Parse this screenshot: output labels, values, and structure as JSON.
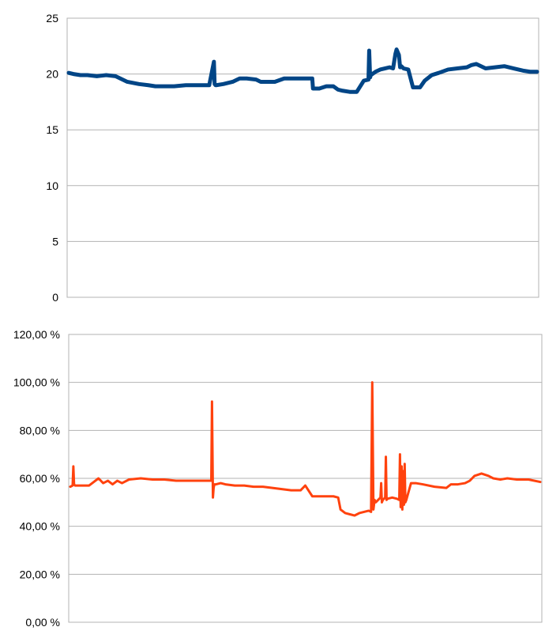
{
  "chart_data": [
    {
      "type": "line",
      "title": "",
      "xlabel": "",
      "ylabel": "",
      "ylim": [
        0,
        25
      ],
      "yticks": [
        0,
        5,
        10,
        15,
        20,
        25
      ],
      "ytick_labels": [
        "0",
        "5",
        "10",
        "15",
        "20",
        "25"
      ],
      "grid": true,
      "legend": "none",
      "series": [
        {
          "color": "#004586",
          "x": [
            0,
            2,
            5,
            8,
            12,
            16,
            20,
            25,
            30,
            34,
            37,
            40,
            45,
            50,
            55,
            60,
            62,
            62.3,
            62.7,
            63,
            66,
            70,
            72,
            73,
            76,
            80,
            82,
            85,
            88,
            92,
            95,
            98,
            100,
            103,
            104,
            104.3,
            107,
            110,
            113,
            115,
            117,
            120,
            123,
            126,
            128,
            128.3,
            128.7,
            129,
            131,
            133,
            135,
            137,
            138.5,
            139.5,
            140,
            141,
            141.5,
            142,
            143,
            145,
            147,
            149,
            150,
            152,
            155,
            158,
            162,
            166,
            170,
            172,
            174,
            178,
            182,
            186,
            190,
            194,
            197,
            200
          ],
          "y": [
            20.1,
            20.0,
            19.9,
            19.9,
            19.8,
            19.9,
            19.8,
            19.3,
            19.1,
            19.0,
            18.9,
            18.9,
            18.9,
            19.0,
            19.0,
            19.0,
            21.1,
            19.1,
            19.0,
            19.0,
            19.1,
            19.3,
            19.5,
            19.6,
            19.6,
            19.5,
            19.3,
            19.3,
            19.3,
            19.6,
            19.6,
            19.6,
            19.6,
            19.6,
            19.6,
            18.7,
            18.7,
            18.9,
            18.9,
            18.6,
            18.5,
            18.4,
            18.4,
            19.4,
            19.5,
            22.1,
            19.7,
            19.9,
            20.2,
            20.4,
            20.5,
            20.6,
            20.5,
            21.8,
            22.2,
            21.7,
            20.6,
            20.7,
            20.5,
            20.4,
            18.8,
            18.8,
            18.8,
            19.4,
            19.9,
            20.1,
            20.4,
            20.5,
            20.6,
            20.8,
            20.9,
            20.5,
            20.6,
            20.7,
            20.5,
            20.3,
            20.2,
            20.2
          ]
        }
      ]
    },
    {
      "type": "line",
      "title": "",
      "xlabel": "",
      "ylabel": "",
      "ylim": [
        0,
        120
      ],
      "yticks": [
        0,
        20,
        40,
        60,
        80,
        100,
        120
      ],
      "ytick_labels": [
        "0,00 %",
        "20,00 %",
        "40,00 %",
        "60,00 %",
        "80,00 %",
        "100,00 %",
        "120,00 %"
      ],
      "grid": true,
      "legend": "none",
      "series": [
        {
          "color": "#ff420e",
          "x": [
            0,
            1,
            1.3,
            1.6,
            2,
            5,
            8,
            10,
            12,
            14,
            16,
            18,
            20,
            22,
            25,
            30,
            35,
            40,
            45,
            50,
            55,
            58,
            60,
            60.3,
            60.7,
            61,
            61.3,
            62,
            64,
            66,
            70,
            74,
            78,
            82,
            86,
            90,
            94,
            98,
            100,
            103,
            104,
            104.3,
            108,
            112,
            114,
            115,
            117,
            119,
            121,
            123,
            125,
            127,
            128,
            128.5,
            129,
            129.5,
            130,
            131,
            132,
            132.3,
            132.6,
            133,
            134,
            134.3,
            134.6,
            135,
            137,
            139,
            140,
            140.3,
            140.6,
            141,
            141.3,
            141.6,
            142,
            142.3,
            142.6,
            143,
            145,
            147,
            150,
            155,
            160,
            162,
            165,
            168,
            170,
            172,
            175,
            178,
            180,
            183,
            186,
            190,
            195,
            200
          ],
          "y": [
            56.5,
            57.0,
            65.0,
            57.5,
            57.0,
            57.0,
            57.0,
            58.5,
            60.0,
            58.0,
            59.0,
            57.5,
            59.0,
            58.0,
            59.5,
            60.0,
            59.5,
            59.5,
            59.0,
            59.0,
            59.0,
            59.0,
            59.0,
            92.0,
            52.0,
            56.0,
            57.5,
            57.5,
            58.0,
            57.5,
            57.0,
            57.0,
            56.5,
            56.5,
            56.0,
            55.5,
            55.0,
            55.0,
            57.0,
            52.5,
            52.5,
            52.5,
            52.5,
            52.5,
            52.0,
            47.0,
            45.5,
            45.0,
            44.5,
            45.5,
            46.0,
            46.5,
            46.0,
            100.0,
            47.0,
            51.0,
            50.0,
            51.0,
            52.0,
            58.0,
            50.0,
            51.0,
            52.0,
            69.0,
            51.0,
            51.5,
            52.0,
            51.5,
            51.0,
            70.0,
            48.0,
            65.0,
            47.0,
            63.0,
            49.0,
            66.0,
            50.0,
            51.0,
            58.0,
            58.0,
            57.5,
            56.5,
            56.0,
            57.5,
            57.5,
            58.0,
            59.0,
            61.0,
            62.0,
            61.0,
            60.0,
            59.5,
            60.0,
            59.5,
            59.5,
            58.5
          ]
        }
      ]
    }
  ]
}
